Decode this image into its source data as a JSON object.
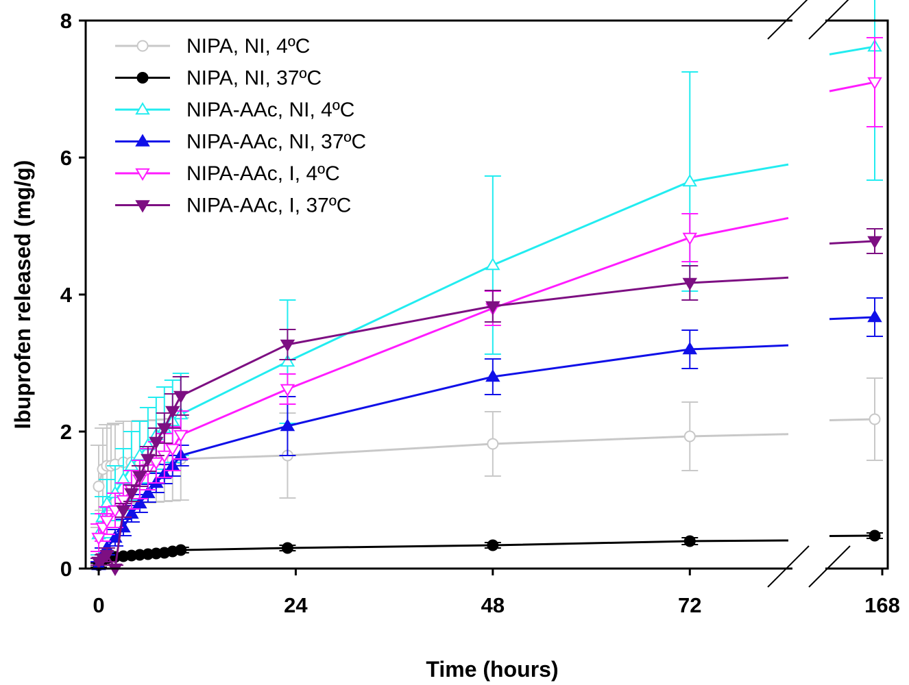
{
  "chart_data": {
    "type": "line",
    "title": "",
    "xlabel": "Time (hours)",
    "ylabel": "Ibuprofen released (mg/g)",
    "ylim": [
      0,
      8
    ],
    "yticks": [
      "0",
      "2",
      "4",
      "6",
      "8"
    ],
    "xticks": [
      "0",
      "24",
      "48",
      "72",
      "168"
    ],
    "xlim_main": [
      -0.5,
      84
    ],
    "xlim_break": [
      161,
      169
    ],
    "break_between": [
      84,
      161
    ],
    "grid": false,
    "legend_position": "top-left",
    "series": [
      {
        "name": "NIPA, NI, 4ºC",
        "color": "#c8c8c8",
        "marker": "circle-open",
        "x": [
          0,
          0.5,
          1,
          1.5,
          2,
          3,
          4,
          5,
          6,
          7,
          8,
          9,
          10,
          23,
          48,
          72,
          167
        ],
        "y": [
          1.2,
          1.45,
          1.5,
          1.5,
          1.52,
          1.55,
          1.55,
          1.56,
          1.56,
          1.57,
          1.58,
          1.59,
          1.6,
          1.65,
          1.82,
          1.93,
          2.18
        ],
        "err": [
          0.6,
          0.6,
          0.6,
          0.6,
          0.6,
          0.6,
          0.6,
          0.6,
          0.6,
          0.6,
          0.6,
          0.6,
          0.6,
          0.62,
          0.47,
          0.5,
          0.6
        ]
      },
      {
        "name": "NIPA, NI, 37ºC",
        "color": "#000000",
        "marker": "circle-filled",
        "x": [
          0,
          0.5,
          1,
          2,
          3,
          4,
          5,
          6,
          7,
          8,
          9,
          10,
          23,
          48,
          72,
          167
        ],
        "y": [
          0.05,
          0.12,
          0.15,
          0.17,
          0.18,
          0.19,
          0.2,
          0.21,
          0.22,
          0.23,
          0.25,
          0.27,
          0.3,
          0.34,
          0.4,
          0.48
        ],
        "err": [
          0.03,
          0.03,
          0.03,
          0.03,
          0.03,
          0.03,
          0.03,
          0.03,
          0.03,
          0.03,
          0.03,
          0.04,
          0.04,
          0.04,
          0.05,
          0.04
        ]
      },
      {
        "name": "NIPA-AAc, NI, 4ºC",
        "color": "#22ecf0",
        "marker": "triangle-up-open",
        "x": [
          0,
          0.5,
          1,
          2,
          3,
          4,
          5,
          6,
          7,
          8,
          9,
          10,
          23,
          48,
          72,
          167
        ],
        "y": [
          0.5,
          0.75,
          0.95,
          1.1,
          1.3,
          1.5,
          1.65,
          1.8,
          1.95,
          2.05,
          2.15,
          2.25,
          3.02,
          4.43,
          5.65,
          7.62
        ],
        "err": [
          0.3,
          0.3,
          0.35,
          0.4,
          0.45,
          0.5,
          0.5,
          0.55,
          0.55,
          0.6,
          0.6,
          0.6,
          0.9,
          1.3,
          1.6,
          1.95
        ]
      },
      {
        "name": "NIPA-AAc, NI, 37ºC",
        "color": "#1010e8",
        "marker": "triangle-up-filled",
        "x": [
          0,
          0.5,
          1,
          2,
          3,
          4,
          5,
          6,
          7,
          8,
          9,
          10,
          23,
          48,
          72,
          167
        ],
        "y": [
          0.05,
          0.2,
          0.3,
          0.45,
          0.6,
          0.8,
          0.95,
          1.1,
          1.25,
          1.38,
          1.5,
          1.65,
          2.08,
          2.8,
          3.2,
          3.67
        ],
        "err": [
          0.05,
          0.1,
          0.1,
          0.12,
          0.12,
          0.12,
          0.13,
          0.13,
          0.14,
          0.14,
          0.15,
          0.15,
          0.43,
          0.26,
          0.28,
          0.28
        ]
      },
      {
        "name": "NIPA-AAc, I, 4ºC",
        "color": "#ff1cff",
        "marker": "triangle-down-open",
        "x": [
          0,
          0.5,
          1,
          2,
          3,
          4,
          5,
          6,
          7,
          8,
          9,
          10,
          23,
          48,
          72,
          167
        ],
        "y": [
          0.45,
          0.6,
          0.7,
          0.85,
          1.0,
          1.15,
          1.3,
          1.45,
          1.55,
          1.65,
          1.75,
          1.95,
          2.62,
          3.8,
          4.83,
          7.1
        ],
        "err": [
          0.2,
          0.2,
          0.2,
          0.25,
          0.25,
          0.28,
          0.28,
          0.3,
          0.3,
          0.32,
          0.32,
          0.35,
          0.22,
          0.25,
          0.35,
          0.65
        ]
      },
      {
        "name": "NIPA-AAc, I, 37ºC",
        "color": "#7d0f82",
        "marker": "triangle-down-filled",
        "x": [
          0,
          0.5,
          1,
          2,
          3,
          4,
          5,
          6,
          7,
          8,
          9,
          10,
          23,
          48,
          72,
          167
        ],
        "y": [
          0.1,
          0.15,
          0.2,
          0.0,
          0.85,
          1.1,
          1.35,
          1.6,
          1.85,
          2.05,
          2.3,
          2.52,
          3.27,
          3.83,
          4.17,
          4.78
        ],
        "err": [
          0.05,
          0.05,
          0.1,
          0.05,
          0.1,
          0.12,
          0.15,
          0.18,
          0.2,
          0.22,
          0.25,
          0.28,
          0.22,
          0.23,
          0.25,
          0.18
        ]
      }
    ]
  }
}
